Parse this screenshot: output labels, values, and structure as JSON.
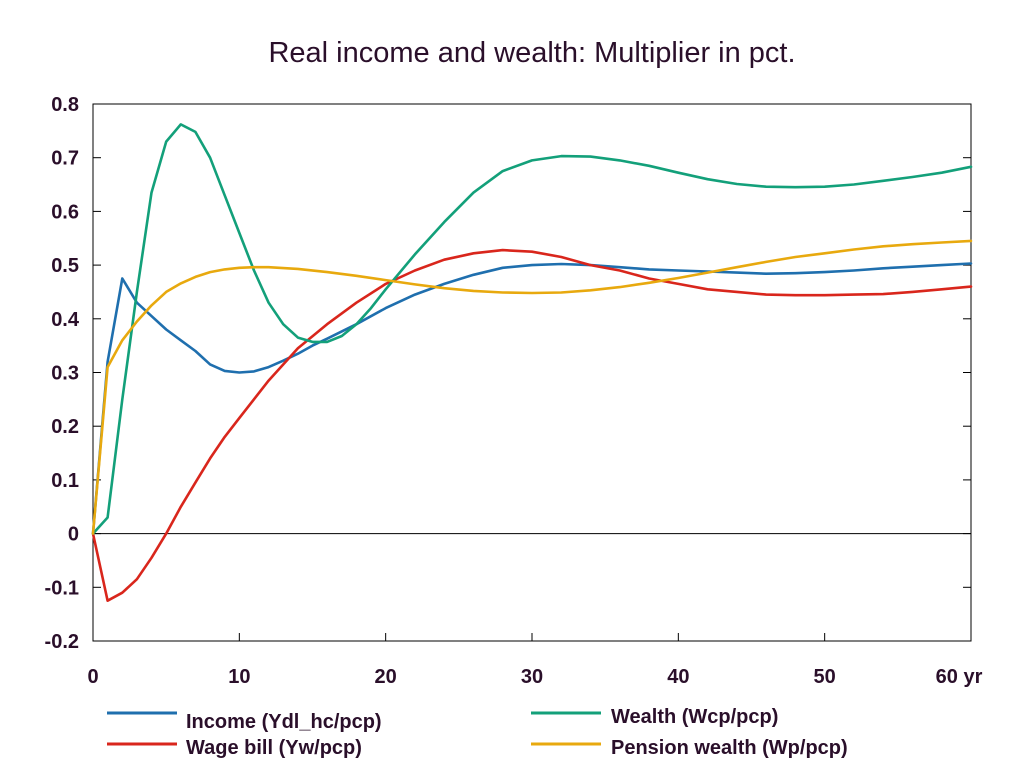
{
  "chart_data": {
    "type": "line",
    "title": "Real income and wealth: Multiplier in pct.",
    "xlabel": "",
    "ylabel": "",
    "x_unit": "yr",
    "xlim": [
      0,
      60
    ],
    "ylim": [
      -0.2,
      0.8
    ],
    "xticks": [
      0,
      10,
      20,
      30,
      40,
      50,
      60
    ],
    "xtick_labels": [
      "0",
      "10",
      "20",
      "30",
      "40",
      "50",
      "60 yr"
    ],
    "yticks": [
      -0.2,
      -0.1,
      0,
      0.1,
      0.2,
      0.3,
      0.4,
      0.5,
      0.6,
      0.7,
      0.8
    ],
    "ytick_labels": [
      "-0.2",
      "-0.1",
      "0",
      "0.1",
      "0.2",
      "0.3",
      "0.4",
      "0.5",
      "0.6",
      "0.7",
      "0.8"
    ],
    "grid": false,
    "zero_line": true,
    "legend_position": "bottom",
    "series": [
      {
        "name": "Income (Ydl_hc/pcp)",
        "color": "#1f6fae",
        "points": [
          [
            0,
            0
          ],
          [
            1,
            0.32
          ],
          [
            2,
            0.475
          ],
          [
            3,
            0.43
          ],
          [
            4,
            0.405
          ],
          [
            5,
            0.38
          ],
          [
            6,
            0.36
          ],
          [
            7,
            0.34
          ],
          [
            8,
            0.315
          ],
          [
            9,
            0.303
          ],
          [
            10,
            0.3
          ],
          [
            11,
            0.302
          ],
          [
            12,
            0.31
          ],
          [
            13,
            0.322
          ],
          [
            14,
            0.335
          ],
          [
            15,
            0.35
          ],
          [
            16,
            0.363
          ],
          [
            18,
            0.39
          ],
          [
            20,
            0.42
          ],
          [
            22,
            0.445
          ],
          [
            24,
            0.465
          ],
          [
            26,
            0.482
          ],
          [
            28,
            0.495
          ],
          [
            30,
            0.5
          ],
          [
            32,
            0.502
          ],
          [
            34,
            0.5
          ],
          [
            36,
            0.496
          ],
          [
            38,
            0.492
          ],
          [
            40,
            0.49
          ],
          [
            42,
            0.488
          ],
          [
            44,
            0.486
          ],
          [
            46,
            0.484
          ],
          [
            48,
            0.485
          ],
          [
            50,
            0.487
          ],
          [
            52,
            0.49
          ],
          [
            54,
            0.494
          ],
          [
            56,
            0.497
          ],
          [
            58,
            0.5
          ],
          [
            60,
            0.503
          ]
        ]
      },
      {
        "name": "Wage bill (Yw/pcp)",
        "color": "#d9261c",
        "points": [
          [
            0,
            0
          ],
          [
            1,
            -0.125
          ],
          [
            2,
            -0.11
          ],
          [
            3,
            -0.085
          ],
          [
            4,
            -0.045
          ],
          [
            5,
            0.0
          ],
          [
            6,
            0.05
          ],
          [
            7,
            0.095
          ],
          [
            8,
            0.14
          ],
          [
            9,
            0.18
          ],
          [
            10,
            0.215
          ],
          [
            12,
            0.285
          ],
          [
            14,
            0.345
          ],
          [
            16,
            0.39
          ],
          [
            18,
            0.43
          ],
          [
            20,
            0.465
          ],
          [
            22,
            0.49
          ],
          [
            24,
            0.51
          ],
          [
            26,
            0.522
          ],
          [
            28,
            0.528
          ],
          [
            30,
            0.525
          ],
          [
            32,
            0.515
          ],
          [
            34,
            0.5
          ],
          [
            36,
            0.49
          ],
          [
            38,
            0.475
          ],
          [
            40,
            0.465
          ],
          [
            42,
            0.455
          ],
          [
            44,
            0.45
          ],
          [
            46,
            0.445
          ],
          [
            48,
            0.444
          ],
          [
            50,
            0.444
          ],
          [
            52,
            0.445
          ],
          [
            54,
            0.446
          ],
          [
            56,
            0.45
          ],
          [
            58,
            0.455
          ],
          [
            60,
            0.46
          ]
        ]
      },
      {
        "name": "Wealth (Wcp/pcp)",
        "color": "#13a07a",
        "points": [
          [
            0,
            0
          ],
          [
            1,
            0.03
          ],
          [
            2,
            0.25
          ],
          [
            3,
            0.45
          ],
          [
            4,
            0.635
          ],
          [
            5,
            0.73
          ],
          [
            6,
            0.762
          ],
          [
            7,
            0.748
          ],
          [
            8,
            0.7
          ],
          [
            9,
            0.63
          ],
          [
            10,
            0.56
          ],
          [
            11,
            0.49
          ],
          [
            12,
            0.43
          ],
          [
            13,
            0.39
          ],
          [
            14,
            0.365
          ],
          [
            15,
            0.357
          ],
          [
            16,
            0.357
          ],
          [
            17,
            0.368
          ],
          [
            18,
            0.39
          ],
          [
            19,
            0.42
          ],
          [
            20,
            0.455
          ],
          [
            22,
            0.52
          ],
          [
            24,
            0.58
          ],
          [
            26,
            0.635
          ],
          [
            28,
            0.675
          ],
          [
            30,
            0.695
          ],
          [
            32,
            0.703
          ],
          [
            34,
            0.702
          ],
          [
            36,
            0.695
          ],
          [
            38,
            0.685
          ],
          [
            40,
            0.672
          ],
          [
            42,
            0.66
          ],
          [
            44,
            0.651
          ],
          [
            46,
            0.646
          ],
          [
            48,
            0.645
          ],
          [
            50,
            0.646
          ],
          [
            52,
            0.65
          ],
          [
            54,
            0.657
          ],
          [
            56,
            0.664
          ],
          [
            58,
            0.672
          ],
          [
            60,
            0.683
          ]
        ]
      },
      {
        "name": "Pension wealth (Wp/pcp)",
        "color": "#e8a90e",
        "points": [
          [
            0,
            0
          ],
          [
            1,
            0.31
          ],
          [
            2,
            0.36
          ],
          [
            3,
            0.395
          ],
          [
            4,
            0.425
          ],
          [
            5,
            0.45
          ],
          [
            6,
            0.466
          ],
          [
            7,
            0.478
          ],
          [
            8,
            0.487
          ],
          [
            9,
            0.492
          ],
          [
            10,
            0.495
          ],
          [
            11,
            0.496
          ],
          [
            12,
            0.496
          ],
          [
            14,
            0.493
          ],
          [
            16,
            0.487
          ],
          [
            18,
            0.48
          ],
          [
            20,
            0.472
          ],
          [
            22,
            0.464
          ],
          [
            24,
            0.457
          ],
          [
            26,
            0.452
          ],
          [
            28,
            0.449
          ],
          [
            30,
            0.448
          ],
          [
            32,
            0.449
          ],
          [
            34,
            0.453
          ],
          [
            36,
            0.459
          ],
          [
            38,
            0.467
          ],
          [
            40,
            0.476
          ],
          [
            42,
            0.486
          ],
          [
            44,
            0.496
          ],
          [
            46,
            0.506
          ],
          [
            48,
            0.515
          ],
          [
            50,
            0.522
          ],
          [
            52,
            0.529
          ],
          [
            54,
            0.535
          ],
          [
            56,
            0.539
          ],
          [
            58,
            0.542
          ],
          [
            60,
            0.545
          ]
        ]
      }
    ]
  }
}
